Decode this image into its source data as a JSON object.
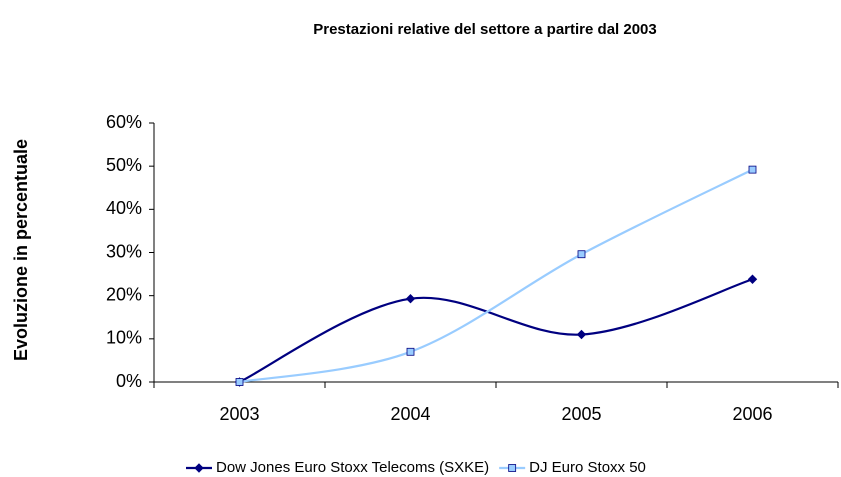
{
  "chart_data": {
    "type": "line",
    "title": "Prestazioni relative del settore a partire dal 2003",
    "y_label": "Evoluzione in percentuale",
    "categories": [
      "2003",
      "2004",
      "2005",
      "2006"
    ],
    "series": [
      {
        "name": "Dow Jones Euro Stoxx Telecoms (SXKE)",
        "color": "#000080",
        "marker": "diamond",
        "values": [
          0,
          19.3,
          11,
          23.8
        ]
      },
      {
        "name": "DJ Euro Stoxx 50",
        "color": "#99ccff",
        "marker": "square",
        "values": [
          0,
          7,
          29.6,
          49.2
        ]
      }
    ],
    "ylim": [
      0,
      60
    ],
    "yticks": [
      {
        "value": 0,
        "label": "0%"
      },
      {
        "value": 10,
        "label": "10%"
      },
      {
        "value": 20,
        "label": "20%"
      },
      {
        "value": 30,
        "label": "30%"
      },
      {
        "value": 40,
        "label": "40%"
      },
      {
        "value": 50,
        "label": "50%"
      },
      {
        "value": 60,
        "label": "60%"
      }
    ],
    "smooth": true
  }
}
